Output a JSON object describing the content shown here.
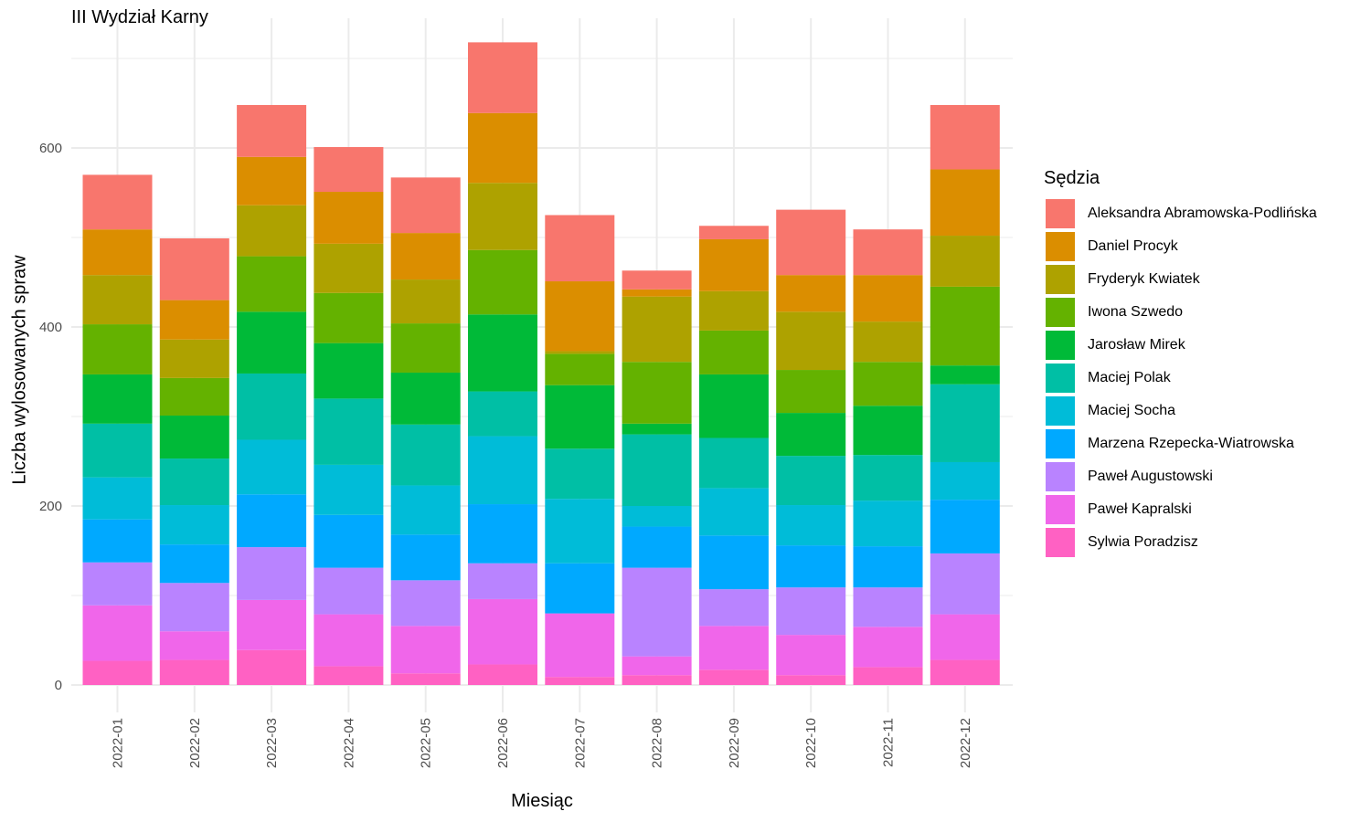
{
  "chart_data": {
    "type": "bar",
    "stacked": true,
    "title": "III Wydział Karny",
    "xlabel": "Miesiąc",
    "ylabel": "Liczba wylosowanych spraw",
    "legend_title": "Sędzia",
    "legend_position": "right",
    "grid": true,
    "ylim": [
      0,
      720
    ],
    "yticks": [
      0,
      200,
      400,
      600
    ],
    "categories": [
      "2022-01",
      "2022-02",
      "2022-03",
      "2022-04",
      "2022-05",
      "2022-06",
      "2022-07",
      "2022-08",
      "2022-09",
      "2022-10",
      "2022-11",
      "2022-12"
    ],
    "series": [
      {
        "name": "Sylwia Poradzisz",
        "color": "#FF61C3",
        "values": [
          27,
          28,
          39,
          21,
          13,
          23,
          9,
          11,
          17,
          11,
          20,
          28
        ]
      },
      {
        "name": "Paweł Kapralski",
        "color": "#F066EA",
        "values": [
          62,
          32,
          56,
          58,
          53,
          73,
          71,
          21,
          49,
          45,
          45,
          51
        ]
      },
      {
        "name": "Paweł Augustowski",
        "color": "#B983FF",
        "values": [
          48,
          54,
          59,
          52,
          51,
          40,
          0,
          99,
          41,
          53,
          44,
          68
        ]
      },
      {
        "name": "Marzena Rzepecka-Wiatrowska",
        "color": "#00A9FF",
        "values": [
          48,
          43,
          59,
          59,
          51,
          66,
          56,
          46,
          60,
          47,
          46,
          60
        ]
      },
      {
        "name": "Maciej Socha",
        "color": "#00BCD8",
        "values": [
          47,
          44,
          61,
          56,
          55,
          76,
          72,
          23,
          53,
          45,
          51,
          42
        ]
      },
      {
        "name": "Maciej Polak",
        "color": "#00BFA5",
        "values": [
          60,
          52,
          74,
          74,
          68,
          50,
          56,
          80,
          56,
          55,
          51,
          87
        ]
      },
      {
        "name": "Jarosław Mirek",
        "color": "#00BA38",
        "values": [
          55,
          48,
          69,
          62,
          58,
          86,
          71,
          12,
          71,
          48,
          55,
          21
        ]
      },
      {
        "name": "Iwona Szwedo",
        "color": "#64B200",
        "values": [
          56,
          42,
          62,
          56,
          55,
          72,
          35,
          69,
          49,
          48,
          49,
          88
        ]
      },
      {
        "name": "Fryderyk Kwiatek",
        "color": "#AEA200",
        "values": [
          55,
          43,
          57,
          55,
          49,
          75,
          3,
          73,
          44,
          65,
          45,
          57
        ]
      },
      {
        "name": "Daniel Procyk",
        "color": "#DB8E00",
        "values": [
          51,
          44,
          54,
          58,
          52,
          78,
          78,
          8,
          58,
          41,
          52,
          74
        ]
      },
      {
        "name": "Aleksandra Abramowska-Podlińska",
        "color": "#F8766D",
        "values": [
          61,
          69,
          58,
          50,
          62,
          79,
          74,
          21,
          15,
          73,
          51,
          72
        ]
      }
    ]
  }
}
